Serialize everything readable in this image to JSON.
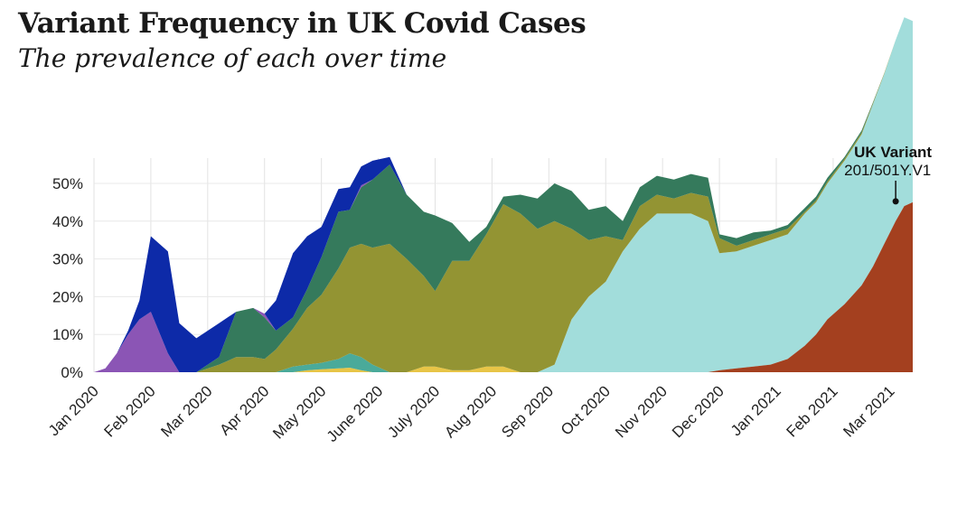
{
  "title": "Variant Frequency in UK Covid Cases",
  "subtitle": "The prevalence of each over time",
  "chart_data": {
    "type": "area",
    "stacked": true,
    "title": "Variant Frequency in UK Covid Cases",
    "subtitle": "The prevalence of each over time",
    "xlabel": "",
    "ylabel": "",
    "ylim": [
      0,
      57
    ],
    "y_ticks": [
      0,
      10,
      20,
      30,
      40,
      50
    ],
    "y_tick_labels": [
      "0%",
      "10%",
      "20%",
      "30%",
      "40%",
      "50%"
    ],
    "x_tick_labels": [
      "Jan 2020",
      "Feb 2020",
      "Mar 2020",
      "Apr 2020",
      "May 2020",
      "June 2020",
      "July 2020",
      "Aug 2020",
      "Sep 2020",
      "Oct 2020",
      "Nov 2020",
      "Dec 2020",
      "Jan 2021",
      "Feb 2021",
      "Mar 2021"
    ],
    "x_month": [
      0,
      0.2,
      0.4,
      0.6,
      0.8,
      1,
      1.3,
      1.5,
      1.8,
      2.2,
      2.5,
      2.8,
      3.0,
      3.2,
      3.5,
      3.75,
      4,
      4.3,
      4.5,
      4.7,
      4.9,
      5.2,
      5.5,
      5.8,
      6.0,
      6.3,
      6.6,
      6.9,
      7.2,
      7.5,
      7.8,
      8.1,
      8.4,
      8.7,
      9.0,
      9.3,
      9.6,
      9.9,
      10.2,
      10.5,
      10.8,
      11.0,
      11.3,
      11.6,
      11.9,
      12.2,
      12.5,
      12.7,
      12.9,
      13.2,
      13.5,
      13.7,
      13.9,
      14.1,
      14.25,
      14.4
    ],
    "series": [
      {
        "name": "Yellow",
        "color": "#e8c547",
        "values": [
          0,
          0,
          0,
          0,
          0,
          0,
          0,
          0,
          0,
          0,
          0,
          0,
          0,
          0,
          0,
          0.5,
          0.8,
          1,
          1.2,
          0.5,
          0,
          0,
          0,
          1.5,
          1.5,
          0.5,
          0.5,
          1.5,
          1.5,
          0,
          0,
          0,
          0,
          0,
          0,
          0,
          0,
          0,
          0,
          0,
          0,
          0,
          0,
          0,
          0,
          0,
          0,
          0,
          0,
          0,
          0,
          0,
          0,
          0,
          0,
          0
        ]
      },
      {
        "name": "Teal",
        "color": "#4aaa9a",
        "values": [
          0,
          0,
          0,
          0,
          0,
          0,
          0,
          0,
          0,
          0,
          0,
          0,
          0,
          0,
          1.5,
          1.5,
          1.7,
          2.5,
          3.8,
          3.5,
          2,
          0,
          0,
          0,
          0,
          0,
          0,
          0,
          0,
          0,
          0,
          0,
          0,
          0,
          0,
          0,
          0,
          0,
          0,
          0,
          0,
          0,
          0,
          0,
          0,
          0,
          0,
          0,
          0,
          0,
          0,
          0,
          0,
          0,
          0,
          0
        ]
      },
      {
        "name": "Light blue",
        "color": "#a2dddb",
        "values": [
          0,
          0,
          0,
          0,
          0,
          0,
          0,
          0,
          0,
          0,
          0,
          0,
          0,
          0,
          0,
          0,
          0,
          0,
          0,
          0,
          0,
          0,
          0,
          0,
          0,
          0,
          0,
          0,
          0,
          0,
          0,
          2,
          14,
          20,
          24,
          32,
          38,
          42,
          42,
          42,
          40,
          31,
          31,
          32,
          33,
          33,
          35,
          35,
          36,
          38,
          40,
          43,
          45,
          48,
          50,
          48
        ]
      },
      {
        "name": "Red-brown",
        "color": "#a4401f",
        "values": [
          0,
          0,
          0,
          0,
          0,
          0,
          0,
          0,
          0,
          0,
          0,
          0,
          0,
          0,
          0,
          0,
          0,
          0,
          0,
          0,
          0,
          0,
          0,
          0,
          0,
          0,
          0,
          0,
          0,
          0,
          0,
          0,
          0,
          0,
          0,
          0,
          0,
          0,
          0,
          0,
          0,
          0,
          0,
          0,
          0,
          0,
          0,
          0,
          0,
          0,
          0,
          0,
          0,
          0,
          0,
          0
        ]
      },
      {
        "name": "Olive",
        "color": "#939433",
        "values": [
          0,
          0,
          0,
          0,
          0,
          0,
          0,
          0,
          0,
          2,
          4,
          4,
          3.5,
          6,
          10,
          15,
          18,
          24,
          28,
          30,
          31,
          34,
          30,
          24,
          20,
          29,
          29,
          35,
          43,
          42,
          38,
          38,
          24,
          15,
          12,
          3,
          6,
          5,
          4,
          5.5,
          6.5,
          4,
          1.5,
          1.5,
          1.5,
          1.5,
          0.5,
          0.5,
          0.5,
          0.5,
          0.5,
          0.3,
          0.2,
          0,
          0,
          0
        ]
      },
      {
        "name": "Dark green",
        "color": "#357a5c",
        "values": [
          0,
          0,
          0,
          0,
          0,
          0,
          0,
          0,
          0,
          2,
          12,
          13,
          11,
          5,
          3,
          5,
          10,
          15,
          10,
          15,
          18,
          21,
          17,
          17,
          20,
          10,
          5,
          2,
          2,
          5,
          8,
          10,
          10,
          8,
          8,
          5,
          5,
          5,
          5,
          5,
          5,
          1,
          2,
          2,
          1,
          1,
          1,
          1,
          1,
          0.5,
          0.5,
          0.2,
          0,
          0,
          0,
          0
        ]
      },
      {
        "name": "Purple",
        "color": "#8b55b5",
        "values": [
          0,
          1,
          5,
          10,
          14,
          16,
          5,
          0,
          0,
          0,
          0,
          0,
          1,
          0,
          0,
          0,
          0,
          0,
          0,
          0.5,
          0,
          0,
          0,
          0,
          0,
          0,
          0,
          0,
          0,
          0,
          0,
          0,
          0,
          0,
          0,
          0,
          0,
          0,
          0,
          0,
          0,
          0,
          0,
          0,
          0,
          0,
          0,
          0,
          0,
          0,
          0,
          0,
          0,
          0,
          0,
          0
        ]
      },
      {
        "name": "Blue",
        "color": "#0d2aa8",
        "values": [
          0,
          0,
          0,
          1,
          5,
          20,
          27,
          13,
          9,
          9,
          0,
          0,
          0,
          8,
          17,
          14,
          8,
          6,
          6,
          5,
          5,
          2,
          0,
          0,
          0,
          0,
          0,
          0,
          0,
          0,
          0,
          0,
          0,
          0,
          0,
          0,
          0,
          0,
          0,
          0,
          0,
          0,
          0,
          0,
          0,
          0,
          0,
          0,
          0,
          0,
          0,
          0,
          0,
          0,
          0,
          0
        ]
      }
    ],
    "uk_variant": {
      "name": "UK Variant 201/501Y.V1",
      "color": "#a4401f",
      "values": [
        0,
        0,
        0,
        0,
        0,
        0,
        0,
        0,
        0,
        0,
        0,
        0,
        0,
        0,
        0,
        0,
        0,
        0,
        0,
        0,
        0,
        0,
        0,
        0,
        0,
        0,
        0,
        0,
        0,
        0,
        0,
        0,
        0,
        0,
        0,
        0,
        0,
        0,
        0,
        0,
        0,
        0.5,
        1,
        1.5,
        2,
        3.5,
        7,
        10,
        14,
        18,
        23,
        28,
        34,
        40,
        44,
        45
      ],
      "annotation_at_month": 14.1,
      "annotation_value": 45
    },
    "annotation": {
      "title": "UK Variant",
      "subtitle": "201/501Y.V1"
    }
  }
}
